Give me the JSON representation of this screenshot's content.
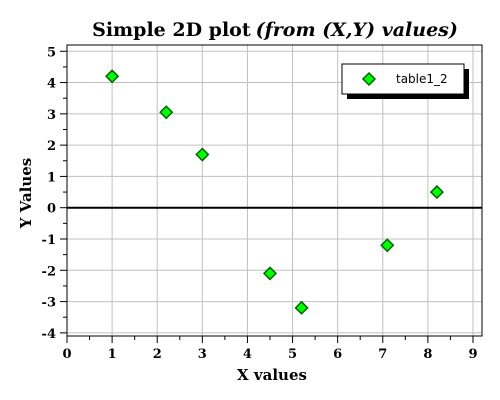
{
  "chart_data": {
    "type": "scatter",
    "title": "Simple 2D plot",
    "title_italic": "(from (X,Y) values)",
    "xlabel": "X values",
    "ylabel": "Y Values",
    "xlim": [
      0,
      9.2
    ],
    "ylim": [
      -4.1,
      5.2
    ],
    "xticks": [
      0,
      1,
      2,
      3,
      4,
      5,
      6,
      7,
      8,
      9
    ],
    "yticks": [
      -4,
      -3,
      -2,
      -1,
      0,
      1,
      2,
      3,
      4,
      5
    ],
    "xtick_labels": [
      "0",
      "1",
      "2",
      "3",
      "4",
      "5",
      "6",
      "7",
      "8",
      "9"
    ],
    "ytick_labels": [
      "-4",
      "-3",
      "-2",
      "-1",
      "0",
      "1",
      "2",
      "3",
      "4",
      "5"
    ],
    "grid": true,
    "zero_line": true,
    "legend_position": "top-right",
    "series": [
      {
        "name": "table1_2",
        "marker": "diamond",
        "color": "#00ff00",
        "edge_color": "#006400",
        "x": [
          1.0,
          2.2,
          3.0,
          4.5,
          5.2,
          7.1,
          8.2
        ],
        "y": [
          4.2,
          3.05,
          1.7,
          -2.1,
          -3.2,
          -1.2,
          0.5
        ]
      }
    ]
  }
}
